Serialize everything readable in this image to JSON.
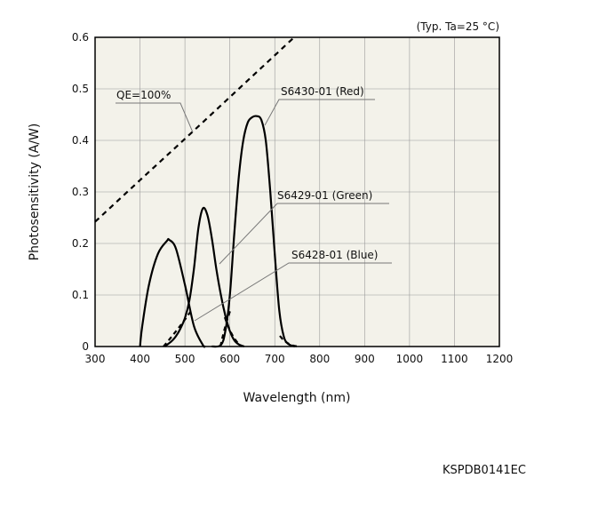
{
  "chart_data": {
    "type": "line",
    "condition_note": "(Typ. Ta=25 °C)",
    "xlabel": "Wavelength (nm)",
    "ylabel": "Photosensitivity (A/W)",
    "xlim": [
      300,
      1200
    ],
    "ylim": [
      0,
      0.6
    ],
    "x_ticks": [
      "300",
      "400",
      "500",
      "600",
      "700",
      "800",
      "900",
      "1000",
      "1100",
      "1200"
    ],
    "y_ticks": [
      "0",
      "0.1",
      "0.2",
      "0.3",
      "0.4",
      "0.5",
      "0.6"
    ],
    "grid": true,
    "plot_background": "#f3f2ea",
    "series": [
      {
        "name": "QE=100%",
        "style": "dashed",
        "x": [
          300,
          400,
          500,
          600,
          700,
          743
        ],
        "y": [
          0.242,
          0.323,
          0.403,
          0.484,
          0.565,
          0.6
        ]
      },
      {
        "name": "S6430-01 (Red)",
        "style": "solid",
        "x": [
          560,
          580,
          590,
          600,
          610,
          620,
          630,
          640,
          650,
          660,
          670,
          680,
          690,
          700,
          710,
          720,
          730,
          745
        ],
        "y": [
          0.0,
          0.003,
          0.03,
          0.1,
          0.22,
          0.33,
          0.4,
          0.435,
          0.445,
          0.447,
          0.44,
          0.4,
          0.3,
          0.18,
          0.07,
          0.02,
          0.005,
          0.0
        ]
      },
      {
        "name": "S6429-01 (Green)",
        "style": "solid",
        "x": [
          455,
          470,
          480,
          490,
          500,
          510,
          520,
          530,
          540,
          550,
          560,
          570,
          580,
          590,
          600,
          610,
          620,
          632
        ],
        "y": [
          0.0,
          0.01,
          0.02,
          0.035,
          0.055,
          0.09,
          0.15,
          0.23,
          0.268,
          0.255,
          0.21,
          0.15,
          0.1,
          0.06,
          0.03,
          0.012,
          0.004,
          0.0
        ]
      },
      {
        "name": "S6428-01 (Blue)",
        "style": "solid",
        "x": [
          400,
          405,
          420,
          440,
          460,
          465,
          480,
          500,
          520,
          540,
          545
        ],
        "y": [
          0.0,
          0.04,
          0.12,
          0.18,
          0.205,
          0.207,
          0.19,
          0.12,
          0.04,
          0.003,
          0.0
        ]
      }
    ],
    "annotations": [
      "QE=100%",
      "S6430-01 (Red)",
      "S6429-01 (Green)",
      "S6428-01 (Blue)"
    ]
  },
  "figure_code": "KSPDB0141EC"
}
